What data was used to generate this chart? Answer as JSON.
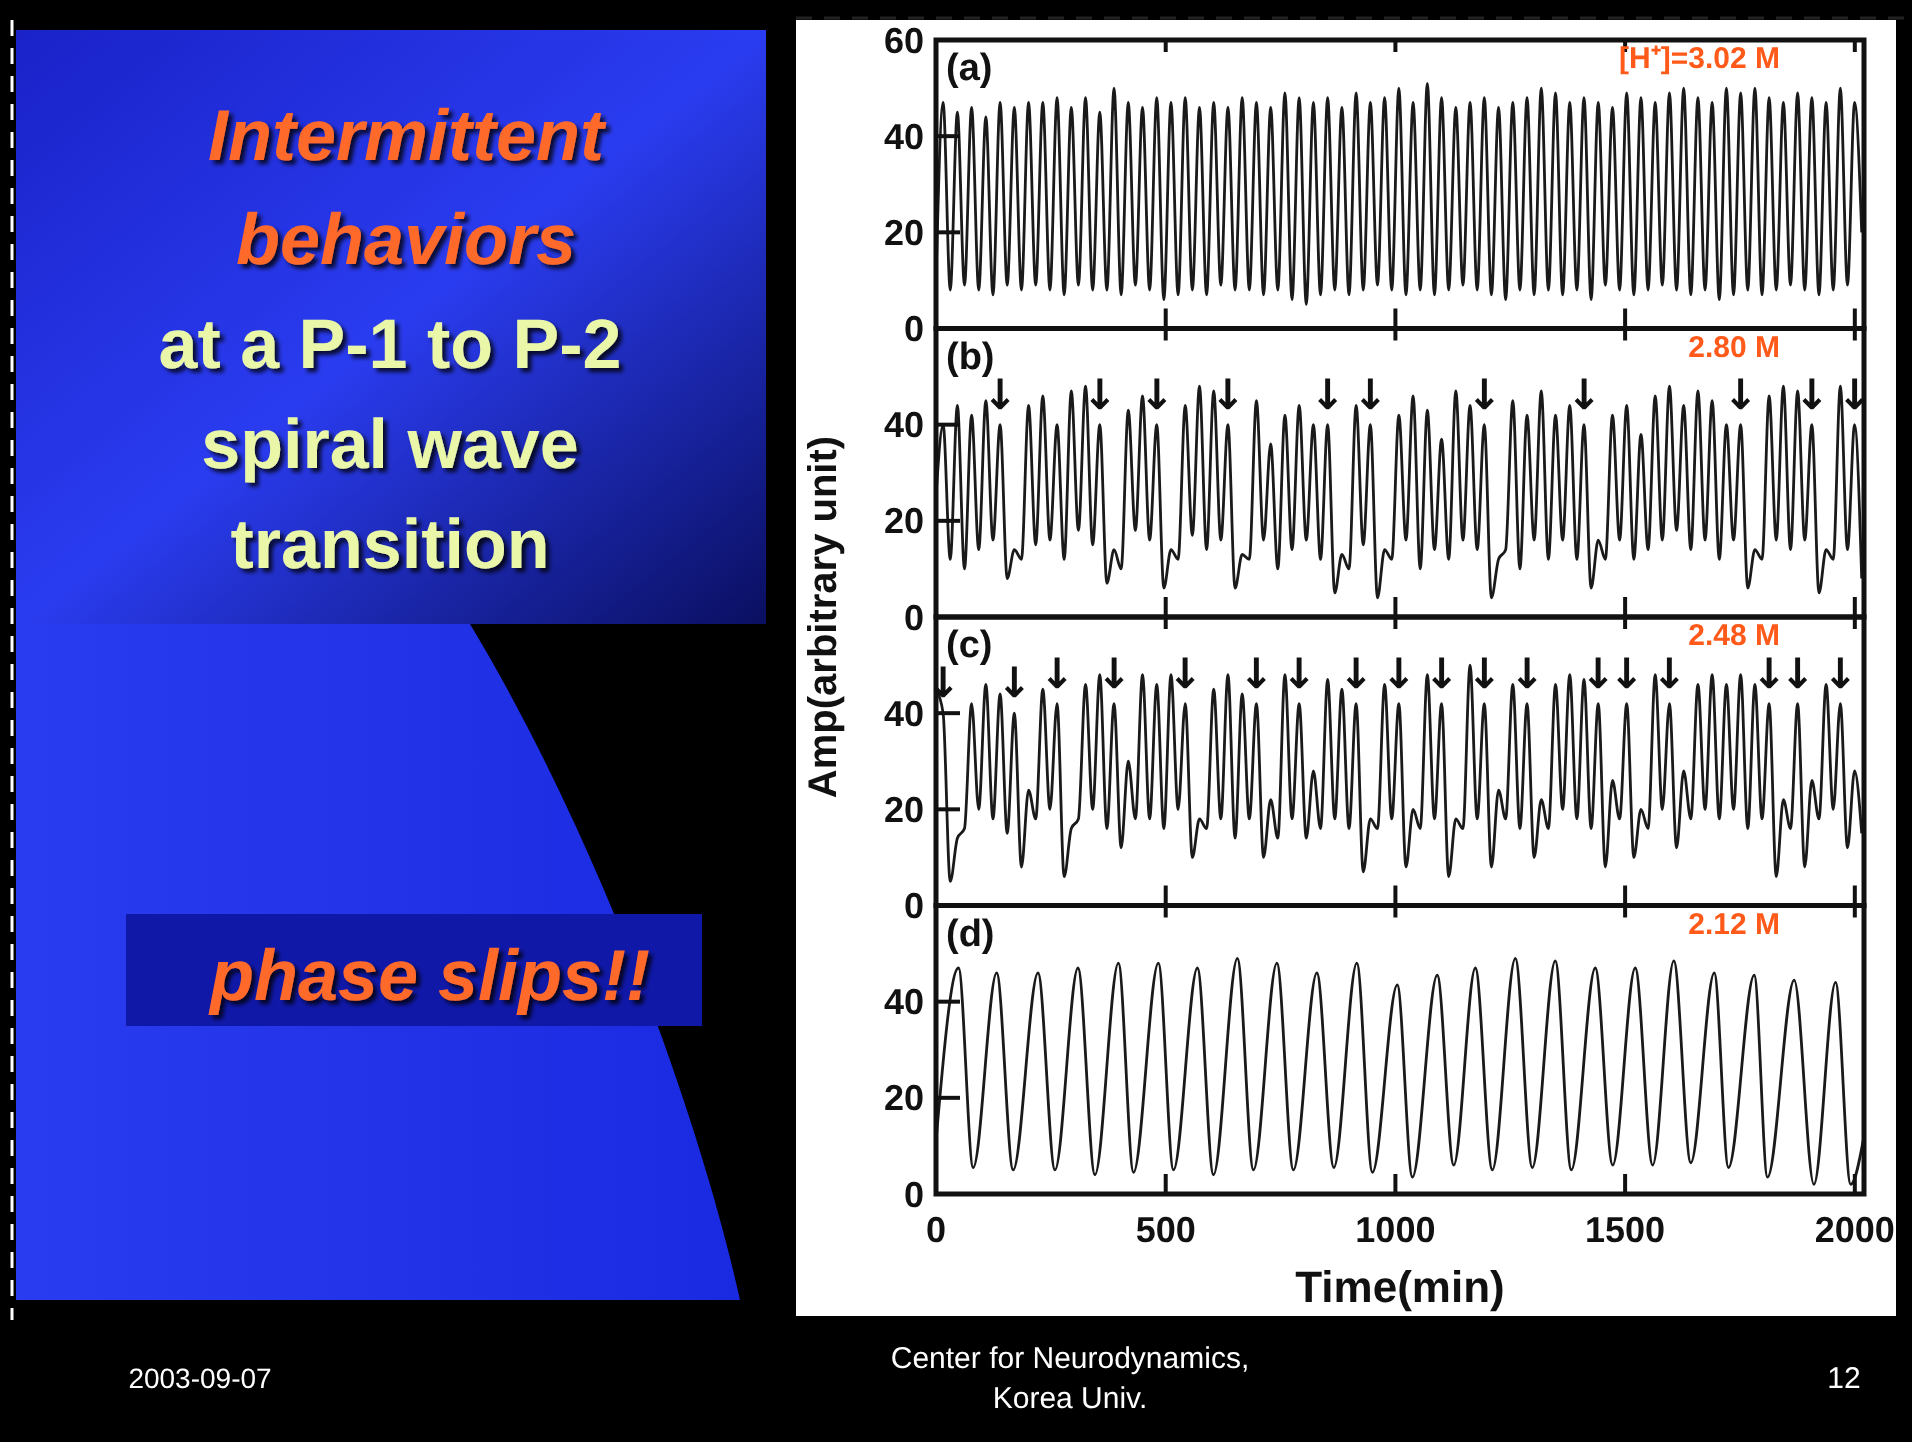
{
  "chart_data": [
    {
      "type": "other",
      "title": "Intermittent behaviors",
      "subtitle": "at a P-1 to P-2 spiral wave transition",
      "annotations": [
        "phase slips!!",
        "2003-09-07",
        "Center for Neurodynamics, Korea Univ.",
        "12"
      ]
    },
    {
      "type": "line",
      "xlim": [
        0,
        2020
      ],
      "ylim": [
        0,
        60
      ],
      "xticks": [
        0,
        500,
        1000,
        1500,
        2000
      ],
      "yticks": [
        0,
        20,
        40,
        60
      ],
      "tick_labels": "y",
      "annotations": [
        "(a)",
        "[H⁺]=3.02 M"
      ],
      "x": [
        0,
        15.5,
        31,
        46.5,
        62,
        77.5,
        93,
        108.5,
        124,
        139.5,
        155,
        170.5,
        186,
        201.5,
        217,
        232.5,
        248,
        263.5,
        279,
        294.5,
        310,
        325.5,
        341,
        356.5,
        372,
        387.5,
        403,
        418.5,
        434,
        449.5,
        465,
        480.5,
        496,
        511.5,
        527,
        542.5,
        558,
        573.5,
        589,
        604.5,
        620,
        635.5,
        651,
        666.5,
        682,
        697.5,
        713,
        728.5,
        744,
        759.5,
        775,
        790.5,
        806,
        821.5,
        837,
        852.5,
        868,
        883.5,
        899,
        914.5,
        930,
        945.5,
        961,
        976.5,
        992,
        1007.5,
        1023,
        1038.5,
        1054,
        1069.5,
        1085,
        1100.5,
        1116,
        1131.5,
        1147,
        1162.5,
        1178,
        1193.5,
        1209,
        1224.5,
        1240,
        1255.5,
        1271,
        1286.5,
        1302,
        1317.5,
        1333,
        1348.5,
        1364,
        1379.5,
        1395,
        1410.5,
        1426,
        1441.5,
        1457,
        1472.5,
        1488,
        1503.5,
        1519,
        1534.5,
        1550,
        1565.5,
        1581,
        1596.5,
        1612,
        1627.5,
        1643,
        1658.5,
        1674,
        1689.5,
        1705,
        1720.5,
        1736,
        1751.5,
        1767,
        1782.5,
        1798,
        1813.5,
        1829,
        1844.5,
        1860,
        1875.5,
        1891,
        1906.5,
        1922,
        1937.5,
        1953,
        1968.5,
        1984,
        1999.5,
        2015
      ],
      "series": [
        {
          "color": "#1a1a1a",
          "values": [
            10,
            47,
            8,
            45,
            9,
            46,
            8,
            44,
            7,
            47,
            9,
            46,
            8,
            47,
            9,
            47,
            8,
            48,
            7,
            46,
            9,
            48,
            8,
            45,
            8,
            50,
            7,
            47,
            9,
            46,
            8,
            48,
            6,
            47,
            7,
            48,
            8,
            46,
            7,
            47,
            9,
            46,
            8,
            48,
            8,
            47,
            7,
            46,
            8,
            49,
            6,
            48,
            5,
            47,
            7,
            48,
            8,
            46,
            7,
            49,
            8,
            47,
            9,
            48,
            8,
            50,
            7,
            47,
            8,
            51,
            7,
            48,
            8,
            46,
            9,
            47,
            8,
            48,
            7,
            46,
            6,
            47,
            8,
            48,
            7,
            50,
            8,
            49,
            7,
            47,
            8,
            48,
            6,
            47,
            9,
            46,
            8,
            49,
            7,
            48,
            8,
            47,
            9,
            49,
            8,
            50,
            7,
            48,
            8,
            47,
            6,
            50,
            7,
            49,
            8,
            50,
            7,
            48,
            8,
            47,
            9,
            49,
            8,
            48,
            7,
            47,
            8,
            50,
            9,
            47,
            20
          ]
        }
      ]
    },
    {
      "type": "line",
      "xlim": [
        0,
        2020
      ],
      "ylim": [
        0,
        60
      ],
      "xticks": [
        0,
        500,
        1000,
        1500,
        2000
      ],
      "yticks": [
        0,
        20,
        40
      ],
      "tick_labels": "y",
      "ylabel": "Amp(arbitrary unit)",
      "annotations": [
        "(b)",
        "2.80 M",
        {
          "text": "↓",
          "x": 139.5,
          "y": 40
        },
        {
          "text": "↓",
          "x": 356.5,
          "y": 40
        },
        {
          "text": "↓",
          "x": 480.5,
          "y": 40
        },
        {
          "text": "↓",
          "x": 635.5,
          "y": 40
        },
        {
          "text": "↓",
          "x": 852.5,
          "y": 40
        },
        {
          "text": "↓",
          "x": 945.5,
          "y": 40
        },
        {
          "text": "↓",
          "x": 1193.5,
          "y": 40
        },
        {
          "text": "↓",
          "x": 1410.5,
          "y": 40
        },
        {
          "text": "↓",
          "x": 1751.5,
          "y": 40
        },
        {
          "text": "↓",
          "x": 1906.5,
          "y": 40
        },
        {
          "text": "↓",
          "x": 1999.5,
          "y": 40
        }
      ],
      "x": [
        0,
        15.5,
        31,
        46.5,
        62,
        77.5,
        93,
        108.5,
        124,
        139.5,
        155,
        170.5,
        186,
        201.5,
        217,
        232.5,
        248,
        263.5,
        279,
        294.5,
        310,
        325.5,
        341,
        356.5,
        372,
        387.5,
        403,
        418.5,
        434,
        449.5,
        465,
        480.5,
        496,
        511.5,
        527,
        542.5,
        558,
        573.5,
        589,
        604.5,
        620,
        635.5,
        651,
        666.5,
        682,
        697.5,
        713,
        728.5,
        744,
        759.5,
        775,
        790.5,
        806,
        821.5,
        837,
        852.5,
        868,
        883.5,
        899,
        914.5,
        930,
        945.5,
        961,
        976.5,
        992,
        1007.5,
        1023,
        1038.5,
        1054,
        1069.5,
        1085,
        1100.5,
        1116,
        1131.5,
        1147,
        1162.5,
        1178,
        1193.5,
        1209,
        1224.5,
        1240,
        1255.5,
        1271,
        1286.5,
        1302,
        1317.5,
        1333,
        1348.5,
        1364,
        1379.5,
        1395,
        1410.5,
        1426,
        1441.5,
        1457,
        1472.5,
        1488,
        1503.5,
        1519,
        1534.5,
        1550,
        1565.5,
        1581,
        1596.5,
        1612,
        1627.5,
        1643,
        1658.5,
        1674,
        1689.5,
        1705,
        1720.5,
        1736,
        1751.5,
        1767,
        1782.5,
        1798,
        1813.5,
        1829,
        1844.5,
        1860,
        1875.5,
        1891,
        1906.5,
        1922,
        1937.5,
        1953,
        1968.5,
        1984,
        1999.5,
        2015
      ],
      "series": [
        {
          "color": "#1a1a1a",
          "values": [
            25,
            40,
            12,
            44,
            10,
            42,
            14,
            45,
            16,
            40,
            8,
            14,
            12,
            44,
            15,
            46,
            16,
            40,
            12,
            47,
            18,
            48,
            15,
            40,
            7,
            14,
            10,
            43,
            18,
            46,
            16,
            40,
            6,
            14,
            12,
            44,
            17,
            48,
            14,
            47,
            16,
            40,
            6,
            13,
            12,
            45,
            16,
            36,
            10,
            42,
            14,
            44,
            16,
            40,
            12,
            40,
            5,
            13,
            10,
            44,
            15,
            40,
            4,
            14,
            12,
            42,
            16,
            46,
            10,
            43,
            14,
            37,
            12,
            47,
            16,
            44,
            14,
            40,
            4,
            12,
            14,
            45,
            10,
            42,
            16,
            47,
            12,
            42,
            16,
            44,
            12,
            40,
            6,
            16,
            12,
            42,
            16,
            44,
            12,
            38,
            14,
            46,
            16,
            48,
            18,
            44,
            14,
            47,
            16,
            45,
            12,
            40,
            16,
            40,
            6,
            14,
            12,
            46,
            16,
            48,
            14,
            47,
            16,
            40,
            5,
            14,
            12,
            48,
            14,
            40,
            8
          ]
        }
      ]
    },
    {
      "type": "line",
      "xlim": [
        0,
        2020
      ],
      "ylim": [
        0,
        60
      ],
      "xticks": [
        0,
        500,
        1000,
        1500,
        2000
      ],
      "yticks": [
        0,
        20,
        40
      ],
      "tick_labels": "y",
      "annotations": [
        "(c)",
        "2.48 M",
        {
          "text": "↓",
          "x": 15.5,
          "y": 40
        },
        {
          "text": "↓",
          "x": 170.5,
          "y": 40
        },
        {
          "text": "↓",
          "x": 263.5,
          "y": 42
        },
        {
          "text": "↓",
          "x": 387.5,
          "y": 42
        },
        {
          "text": "↓",
          "x": 542.5,
          "y": 42
        },
        {
          "text": "↓",
          "x": 697.5,
          "y": 42
        },
        {
          "text": "↓",
          "x": 790.5,
          "y": 42
        },
        {
          "text": "↓",
          "x": 914.5,
          "y": 42
        },
        {
          "text": "↓",
          "x": 1007.5,
          "y": 42
        },
        {
          "text": "↓",
          "x": 1100.5,
          "y": 42
        },
        {
          "text": "↓",
          "x": 1193.5,
          "y": 42
        },
        {
          "text": "↓",
          "x": 1286.5,
          "y": 42
        },
        {
          "text": "↓",
          "x": 1441.5,
          "y": 42
        },
        {
          "text": "↓",
          "x": 1503.5,
          "y": 42
        },
        {
          "text": "↓",
          "x": 1596.5,
          "y": 42
        },
        {
          "text": "↓",
          "x": 1813.5,
          "y": 42
        },
        {
          "text": "↓",
          "x": 1875.5,
          "y": 42
        },
        {
          "text": "↓",
          "x": 1968.5,
          "y": 42
        }
      ],
      "x": [
        0,
        15.5,
        31,
        46.5,
        62,
        77.5,
        93,
        108.5,
        124,
        139.5,
        155,
        170.5,
        186,
        201.5,
        217,
        232.5,
        248,
        263.5,
        279,
        294.5,
        310,
        325.5,
        341,
        356.5,
        372,
        387.5,
        403,
        418.5,
        434,
        449.5,
        465,
        480.5,
        496,
        511.5,
        527,
        542.5,
        558,
        573.5,
        589,
        604.5,
        620,
        635.5,
        651,
        666.5,
        682,
        697.5,
        713,
        728.5,
        744,
        759.5,
        775,
        790.5,
        806,
        821.5,
        837,
        852.5,
        868,
        883.5,
        899,
        914.5,
        930,
        945.5,
        961,
        976.5,
        992,
        1007.5,
        1023,
        1038.5,
        1054,
        1069.5,
        1085,
        1100.5,
        1116,
        1131.5,
        1147,
        1162.5,
        1178,
        1193.5,
        1209,
        1224.5,
        1240,
        1255.5,
        1271,
        1286.5,
        1302,
        1317.5,
        1333,
        1348.5,
        1364,
        1379.5,
        1395,
        1410.5,
        1426,
        1441.5,
        1457,
        1472.5,
        1488,
        1503.5,
        1519,
        1534.5,
        1550,
        1565.5,
        1581,
        1596.5,
        1612,
        1627.5,
        1643,
        1658.5,
        1674,
        1689.5,
        1705,
        1720.5,
        1736,
        1751.5,
        1767,
        1782.5,
        1798,
        1813.5,
        1829,
        1844.5,
        1860,
        1875.5,
        1891,
        1906.5,
        1922,
        1937.5,
        1953,
        1968.5,
        1984,
        1999.5,
        2015
      ],
      "series": [
        {
          "color": "#1a1a1a",
          "values": [
            45,
            40,
            5,
            14,
            16,
            42,
            20,
            46,
            18,
            44,
            15,
            40,
            8,
            24,
            18,
            45,
            20,
            42,
            6,
            16,
            18,
            46,
            20,
            48,
            16,
            42,
            12,
            30,
            18,
            48,
            18,
            46,
            16,
            48,
            20,
            42,
            10,
            18,
            16,
            45,
            18,
            48,
            14,
            44,
            18,
            42,
            10,
            22,
            14,
            48,
            18,
            42,
            14,
            28,
            16,
            47,
            18,
            45,
            16,
            42,
            7,
            18,
            16,
            46,
            18,
            42,
            8,
            20,
            16,
            48,
            18,
            42,
            6,
            18,
            16,
            50,
            18,
            42,
            8,
            24,
            18,
            46,
            16,
            42,
            10,
            22,
            16,
            46,
            20,
            48,
            18,
            47,
            16,
            42,
            8,
            26,
            18,
            42,
            10,
            20,
            16,
            48,
            20,
            42,
            12,
            28,
            18,
            46,
            20,
            48,
            18,
            46,
            20,
            48,
            16,
            46,
            18,
            42,
            6,
            22,
            16,
            42,
            8,
            26,
            18,
            46,
            20,
            42,
            12,
            28,
            15
          ]
        }
      ]
    },
    {
      "type": "line",
      "xlim": [
        0,
        2020
      ],
      "ylim": [
        0,
        60
      ],
      "xticks": [
        0,
        500,
        1000,
        1500,
        2000
      ],
      "yticks": [
        0,
        20,
        40
      ],
      "xlabel": "Time(min)",
      "annotations": [
        "(d)",
        "2.12 M"
      ],
      "x": [
        0,
        49,
        81,
        132,
        168,
        222,
        259,
        309,
        346,
        397,
        430,
        484,
        517,
        569,
        604,
        656,
        691,
        742,
        778,
        829,
        866,
        916,
        950,
        1004,
        1037,
        1091,
        1127,
        1174,
        1211,
        1261,
        1298,
        1348,
        1383,
        1435,
        1473,
        1522,
        1560,
        1606,
        1643,
        1694,
        1725,
        1781,
        1810,
        1868,
        1911,
        1958,
        1991,
        2020
      ],
      "series": [
        {
          "color": "#1a1a1a",
          "values": [
            11,
            47,
            5.5,
            46,
            5,
            46,
            5,
            47,
            4,
            48,
            4.5,
            48,
            5,
            47,
            4,
            49,
            5,
            48,
            5,
            46,
            5.5,
            48,
            4.5,
            43.5,
            3.5,
            45.5,
            6,
            47,
            5,
            49,
            5.5,
            48.5,
            5,
            47,
            6,
            47,
            6,
            48.5,
            6.5,
            46,
            5.5,
            45.5,
            3.5,
            44.5,
            2,
            44,
            2,
            12
          ]
        }
      ]
    }
  ]
}
